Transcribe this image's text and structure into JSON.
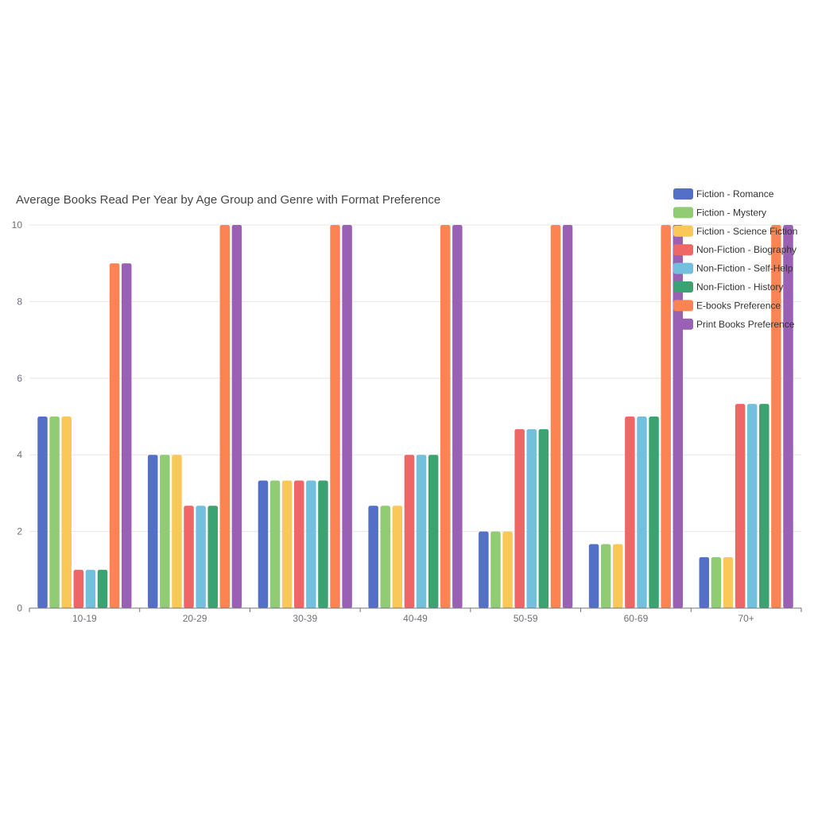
{
  "chart_data": {
    "type": "bar",
    "title": "Average Books Read Per Year by Age Group and Genre with Format Preference",
    "xlabel": "",
    "ylabel": "",
    "ylim": [
      0,
      10
    ],
    "yticks": [
      0,
      2,
      4,
      6,
      8,
      10
    ],
    "grid": true,
    "legend_position": "top-right",
    "categories": [
      "10-19",
      "20-29",
      "30-39",
      "40-49",
      "50-59",
      "60-69",
      "70+"
    ],
    "series": [
      {
        "name": "Fiction - Romance",
        "color": "#5470c6",
        "values": [
          5,
          4,
          3.33,
          2.67,
          2,
          1.67,
          1.33
        ]
      },
      {
        "name": "Fiction - Mystery",
        "color": "#91cc75",
        "values": [
          5,
          4,
          3.33,
          2.67,
          2,
          1.67,
          1.33
        ]
      },
      {
        "name": "Fiction - Science Fiction",
        "color": "#fac858",
        "values": [
          5,
          4,
          3.33,
          2.67,
          2,
          1.67,
          1.33
        ]
      },
      {
        "name": "Non-Fiction - Biography",
        "color": "#ee6666",
        "values": [
          1,
          2.67,
          3.33,
          4,
          4.67,
          5,
          5.33
        ]
      },
      {
        "name": "Non-Fiction - Self-Help",
        "color": "#73c0de",
        "values": [
          1,
          2.67,
          3.33,
          4,
          4.67,
          5,
          5.33
        ]
      },
      {
        "name": "Non-Fiction - History",
        "color": "#3ba272",
        "values": [
          1,
          2.67,
          3.33,
          4,
          4.67,
          5,
          5.33
        ]
      },
      {
        "name": "E-books Preference",
        "color": "#fc8452",
        "values": [
          9,
          10,
          10,
          10,
          10,
          10,
          10
        ]
      },
      {
        "name": "Print Books Preference",
        "color": "#9a60b4",
        "values": [
          9,
          10,
          10,
          10,
          10,
          10,
          10
        ]
      }
    ]
  }
}
